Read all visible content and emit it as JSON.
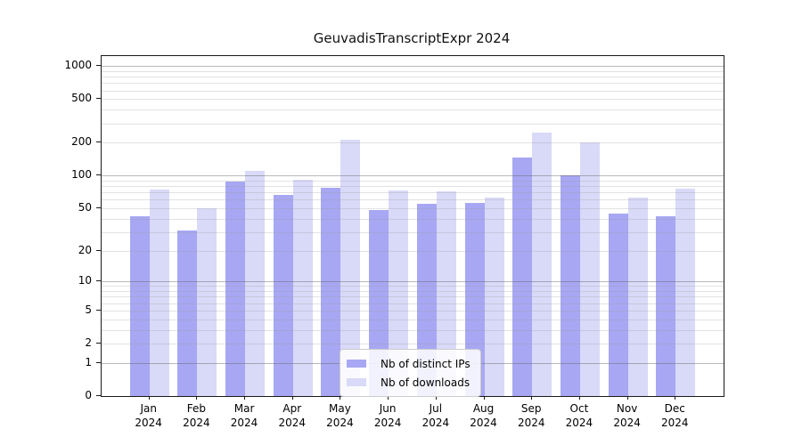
{
  "chart_data": {
    "type": "bar",
    "title": "GeuvadisTranscriptExpr 2024",
    "categories": [
      "Jan",
      "Feb",
      "Mar",
      "Apr",
      "May",
      "Jun",
      "Jul",
      "Aug",
      "Sep",
      "Oct",
      "Nov",
      "Dec"
    ],
    "year_label": "2024",
    "series": [
      {
        "name": "Nb of distinct IPs",
        "color": "#a7a7f3",
        "values": [
          42,
          31,
          89,
          66,
          78,
          48,
          55,
          56,
          146,
          100,
          45,
          42
        ]
      },
      {
        "name": "Nb of downloads",
        "color": "#d9d9f8",
        "values": [
          74,
          50,
          110,
          92,
          213,
          73,
          72,
          63,
          248,
          203,
          63,
          76
        ]
      }
    ],
    "y_scale": "log1p",
    "y_ticks": [
      0,
      1,
      2,
      5,
      10,
      20,
      50,
      100,
      200,
      500,
      1000
    ],
    "y_max": 1236,
    "grid": {
      "major": [
        1,
        10,
        100,
        1000
      ],
      "minor": [
        2,
        3,
        4,
        5,
        6,
        7,
        8,
        9,
        20,
        30,
        40,
        50,
        60,
        70,
        80,
        90,
        200,
        300,
        400,
        500,
        600,
        700,
        800,
        900
      ]
    },
    "legend_position": "bottom-center-inside",
    "xlabel": "",
    "ylabel": ""
  }
}
